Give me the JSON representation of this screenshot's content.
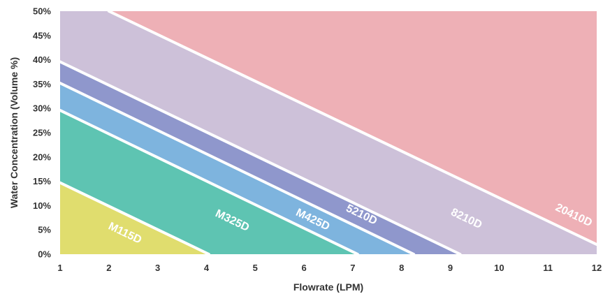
{
  "chart_data": {
    "type": "area",
    "xlabel": "Flowrate (LPM)",
    "ylabel": "Water Concentration (Volume %)",
    "xlim": [
      1,
      12
    ],
    "ylim": [
      0,
      50
    ],
    "x_ticks": [
      "1",
      "2",
      "3",
      "4",
      "5",
      "6",
      "7",
      "8",
      "9",
      "10",
      "11",
      "12"
    ],
    "y_ticks": [
      "0%",
      "5%",
      "10%",
      "15%",
      "20%",
      "25%",
      "30%",
      "35%",
      "40%",
      "45%",
      "50%"
    ],
    "grid": false,
    "series": [
      {
        "name": "M115D",
        "color": "#e0dd6e",
        "boundary": [
          [
            1,
            14.7
          ],
          [
            4.05,
            0
          ]
        ],
        "label_at": [
          2.3,
          3.7
        ]
      },
      {
        "name": "M325D",
        "color": "#5ec4b2",
        "boundary": [
          [
            1,
            29.6
          ],
          [
            7.1,
            0
          ]
        ],
        "label_at": [
          4.5,
          6.3
        ]
      },
      {
        "name": "M425D",
        "color": "#7eb4de",
        "boundary": [
          [
            1,
            35.2
          ],
          [
            8.25,
            0
          ]
        ],
        "label_at": [
          6.15,
          6.5
        ]
      },
      {
        "name": "5210D",
        "color": "#8f97cc",
        "boundary": [
          [
            1,
            39.6
          ],
          [
            9.2,
            0
          ]
        ],
        "label_at": [
          7.15,
          7.5
        ]
      },
      {
        "name": "8210D",
        "color": "#cdc1d9",
        "boundary": [
          [
            2,
            50
          ],
          [
            12,
            2
          ]
        ],
        "label_at": [
          9.3,
          6.7
        ]
      },
      {
        "name": "20410D",
        "color": "#eeb0b6",
        "boundary": null,
        "label_at": [
          11.5,
          7.4
        ]
      }
    ]
  }
}
